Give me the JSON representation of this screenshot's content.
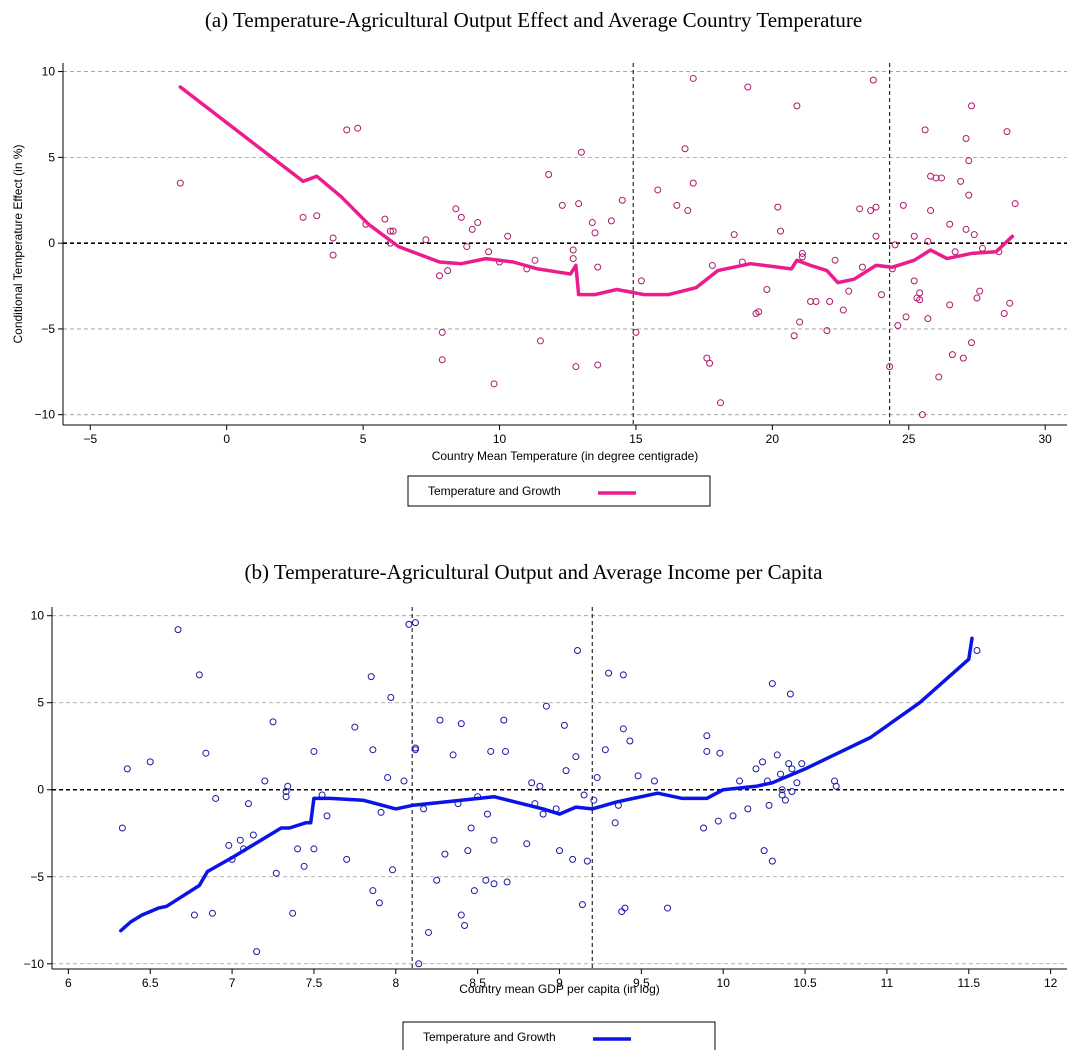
{
  "figure": {
    "panel_a_title": "(a) Temperature-Agricultural Output Effect and Average Country Temperature",
    "panel_b_title": "(b) Temperature-Agricultural Output and Average Income per Capita"
  },
  "chart_data": [
    {
      "type": "scatter",
      "title": "(a) Temperature-Agricultural Output Effect and Average Country Temperature",
      "xlabel": "Country Mean Temperature (in degree centigrade)",
      "ylabel": "Conditional Temperature Effect (in %)",
      "xlim": [
        -6,
        30.8
      ],
      "ylim": [
        -10.6,
        10.5
      ],
      "xticks": [
        -5,
        0,
        5,
        10,
        15,
        20,
        25,
        30
      ],
      "yticks": [
        -10,
        -5,
        0,
        5,
        10
      ],
      "grid": "horizontal dashed",
      "vlines": [
        14.9,
        24.3
      ],
      "hline": 0,
      "marker_color": "#b0196b",
      "line_color": "#ec1c8f",
      "legend": {
        "label": "Temperature and Growth",
        "placement": "bottom-center"
      },
      "fit_line": [
        [
          -1.7,
          9.1
        ],
        [
          2.8,
          3.6
        ],
        [
          3.3,
          3.9
        ],
        [
          4.2,
          2.7
        ],
        [
          5.2,
          1.1
        ],
        [
          6.3,
          -0.2
        ],
        [
          7.8,
          -1.1
        ],
        [
          8.6,
          -1.2
        ],
        [
          9.5,
          -0.9
        ],
        [
          10.5,
          -1.1
        ],
        [
          11.4,
          -1.5
        ],
        [
          12.2,
          -1.7
        ],
        [
          12.6,
          -1.8
        ],
        [
          12.8,
          -1.3
        ],
        [
          12.9,
          -3.0
        ],
        [
          13.5,
          -3.0
        ],
        [
          14.3,
          -2.7
        ],
        [
          15.3,
          -3.0
        ],
        [
          16.2,
          -3.0
        ],
        [
          17.2,
          -2.6
        ],
        [
          18.0,
          -1.6
        ],
        [
          19.2,
          -1.2
        ],
        [
          20.7,
          -1.5
        ],
        [
          20.9,
          -1.0
        ],
        [
          21.4,
          -1.3
        ],
        [
          22.0,
          -1.6
        ],
        [
          22.4,
          -2.3
        ],
        [
          23.0,
          -2.1
        ],
        [
          23.8,
          -1.3
        ],
        [
          24.4,
          -1.4
        ],
        [
          25.2,
          -1.0
        ],
        [
          25.8,
          -0.4
        ],
        [
          26.4,
          -0.9
        ],
        [
          27.3,
          -0.6
        ],
        [
          28.2,
          -0.5
        ],
        [
          28.8,
          0.4
        ]
      ],
      "points": [
        [
          -1.7,
          3.5
        ],
        [
          2.8,
          1.5
        ],
        [
          3.3,
          1.6
        ],
        [
          3.9,
          0.3
        ],
        [
          3.9,
          -0.7
        ],
        [
          4.4,
          6.6
        ],
        [
          4.8,
          6.7
        ],
        [
          5.1,
          1.1
        ],
        [
          5.8,
          1.4
        ],
        [
          6.0,
          0.7
        ],
        [
          6.1,
          0.7
        ],
        [
          6.0,
          0.0
        ],
        [
          7.3,
          0.2
        ],
        [
          7.8,
          -1.9
        ],
        [
          7.9,
          -5.2
        ],
        [
          7.9,
          -6.8
        ],
        [
          8.1,
          -1.6
        ],
        [
          8.4,
          2.0
        ],
        [
          8.6,
          1.5
        ],
        [
          8.8,
          -0.2
        ],
        [
          9.0,
          0.8
        ],
        [
          9.2,
          1.2
        ],
        [
          9.6,
          -0.5
        ],
        [
          9.8,
          -8.2
        ],
        [
          10.0,
          -1.1
        ],
        [
          10.3,
          0.4
        ],
        [
          11.0,
          -1.5
        ],
        [
          11.3,
          -1.0
        ],
        [
          11.5,
          -5.7
        ],
        [
          11.8,
          4.0
        ],
        [
          12.3,
          2.2
        ],
        [
          12.7,
          -0.4
        ],
        [
          12.7,
          -0.9
        ],
        [
          12.8,
          -7.2
        ],
        [
          12.9,
          2.3
        ],
        [
          13.0,
          5.3
        ],
        [
          13.4,
          1.2
        ],
        [
          13.5,
          0.6
        ],
        [
          13.6,
          -1.4
        ],
        [
          13.6,
          -7.1
        ],
        [
          14.1,
          1.3
        ],
        [
          14.5,
          2.5
        ],
        [
          15.0,
          -5.2
        ],
        [
          15.2,
          -2.2
        ],
        [
          15.8,
          3.1
        ],
        [
          16.5,
          2.2
        ],
        [
          16.8,
          5.5
        ],
        [
          16.9,
          1.9
        ],
        [
          17.1,
          9.6
        ],
        [
          17.1,
          3.5
        ],
        [
          17.6,
          -6.7
        ],
        [
          17.7,
          -7.0
        ],
        [
          17.8,
          -1.3
        ],
        [
          18.1,
          -9.3
        ],
        [
          18.6,
          0.5
        ],
        [
          18.9,
          -1.1
        ],
        [
          19.1,
          9.1
        ],
        [
          19.4,
          -4.1
        ],
        [
          19.5,
          -4.0
        ],
        [
          19.8,
          -2.7
        ],
        [
          20.2,
          2.1
        ],
        [
          20.3,
          0.7
        ],
        [
          20.8,
          -5.4
        ],
        [
          20.9,
          8.0
        ],
        [
          21.0,
          -4.6
        ],
        [
          21.1,
          -0.8
        ],
        [
          21.1,
          -0.6
        ],
        [
          21.4,
          -3.4
        ],
        [
          21.6,
          -3.4
        ],
        [
          22.0,
          -5.1
        ],
        [
          22.1,
          -3.4
        ],
        [
          22.3,
          -1.0
        ],
        [
          22.6,
          -3.9
        ],
        [
          22.8,
          -2.8
        ],
        [
          23.2,
          2.0
        ],
        [
          23.3,
          -1.4
        ],
        [
          23.6,
          1.9
        ],
        [
          23.7,
          9.5
        ],
        [
          23.8,
          2.1
        ],
        [
          23.8,
          0.4
        ],
        [
          24.0,
          -3.0
        ],
        [
          24.3,
          -7.2
        ],
        [
          24.4,
          -1.5
        ],
        [
          24.5,
          -0.1
        ],
        [
          24.6,
          -4.8
        ],
        [
          24.8,
          2.2
        ],
        [
          24.9,
          -4.3
        ],
        [
          25.2,
          -2.2
        ],
        [
          25.2,
          0.4
        ],
        [
          25.3,
          -3.2
        ],
        [
          25.4,
          -2.9
        ],
        [
          25.4,
          -3.3
        ],
        [
          25.5,
          -10.0
        ],
        [
          25.6,
          6.6
        ],
        [
          25.7,
          0.1
        ],
        [
          25.7,
          -4.4
        ],
        [
          25.8,
          1.9
        ],
        [
          25.8,
          3.9
        ],
        [
          26.0,
          3.8
        ],
        [
          26.1,
          -7.8
        ],
        [
          26.2,
          3.8
        ],
        [
          26.5,
          -3.6
        ],
        [
          26.5,
          1.1
        ],
        [
          26.6,
          -6.5
        ],
        [
          26.7,
          -0.5
        ],
        [
          26.9,
          3.6
        ],
        [
          27.0,
          -6.7
        ],
        [
          27.1,
          0.8
        ],
        [
          27.1,
          6.1
        ],
        [
          27.2,
          4.8
        ],
        [
          27.2,
          2.8
        ],
        [
          27.3,
          -5.8
        ],
        [
          27.3,
          8.0
        ],
        [
          27.4,
          0.5
        ],
        [
          27.5,
          -3.2
        ],
        [
          27.6,
          -2.8
        ],
        [
          27.7,
          -0.3
        ],
        [
          28.3,
          -0.5
        ],
        [
          28.5,
          -4.1
        ],
        [
          28.6,
          6.5
        ],
        [
          28.7,
          -3.5
        ],
        [
          28.9,
          2.3
        ]
      ]
    },
    {
      "type": "scatter",
      "title": "(b) Temperature-Agricultural Output and Average Income per Capita",
      "xlabel": "Country mean GDP per capita (in log)",
      "ylabel": "",
      "xlim": [
        5.9,
        12.1
      ],
      "ylim": [
        -10.3,
        10.5
      ],
      "xticks": [
        6,
        6.5,
        7,
        7.5,
        8,
        8.5,
        9,
        9.5,
        10,
        10.5,
        11,
        11.5,
        12
      ],
      "yticks": [
        -10,
        -5,
        0,
        5,
        10
      ],
      "grid": "horizontal dashed",
      "vlines": [
        8.1,
        9.2
      ],
      "hline": 0,
      "marker_color": "#1a1aa6",
      "line_color": "#0a14e6",
      "legend": {
        "label": "Temperature and Growth",
        "placement": "bottom-center"
      },
      "fit_line": [
        [
          6.32,
          -8.1
        ],
        [
          6.38,
          -7.6
        ],
        [
          6.45,
          -7.2
        ],
        [
          6.55,
          -6.8
        ],
        [
          6.6,
          -6.7
        ],
        [
          6.8,
          -5.5
        ],
        [
          6.85,
          -4.7
        ],
        [
          7.0,
          -3.9
        ],
        [
          7.3,
          -2.2
        ],
        [
          7.35,
          -2.2
        ],
        [
          7.45,
          -1.9
        ],
        [
          7.48,
          -1.9
        ],
        [
          7.5,
          -0.5
        ],
        [
          7.6,
          -0.5
        ],
        [
          7.8,
          -0.6
        ],
        [
          8.0,
          -1.1
        ],
        [
          8.1,
          -0.9
        ],
        [
          8.4,
          -0.6
        ],
        [
          8.6,
          -0.4
        ],
        [
          8.9,
          -1.1
        ],
        [
          9.0,
          -1.4
        ],
        [
          9.1,
          -1.0
        ],
        [
          9.2,
          -1.1
        ],
        [
          9.35,
          -0.7
        ],
        [
          9.6,
          -0.2
        ],
        [
          9.75,
          -0.5
        ],
        [
          9.9,
          -0.5
        ],
        [
          10.0,
          0.0
        ],
        [
          10.2,
          0.2
        ],
        [
          10.3,
          0.4
        ],
        [
          10.5,
          1.2
        ],
        [
          10.7,
          2.1
        ],
        [
          10.9,
          3.0
        ],
        [
          11.2,
          5.0
        ],
        [
          11.5,
          7.5
        ],
        [
          11.52,
          8.7
        ]
      ],
      "points": [
        [
          6.33,
          -2.2
        ],
        [
          6.36,
          1.2
        ],
        [
          6.5,
          1.6
        ],
        [
          6.67,
          9.2
        ],
        [
          6.77,
          -7.2
        ],
        [
          6.8,
          6.6
        ],
        [
          6.84,
          2.1
        ],
        [
          6.88,
          -7.1
        ],
        [
          6.9,
          -0.5
        ],
        [
          6.98,
          -3.2
        ],
        [
          7.0,
          -4.0
        ],
        [
          7.05,
          -2.9
        ],
        [
          7.07,
          -3.4
        ],
        [
          7.1,
          -0.8
        ],
        [
          7.13,
          -2.6
        ],
        [
          7.15,
          -9.3
        ],
        [
          7.2,
          0.5
        ],
        [
          7.25,
          3.9
        ],
        [
          7.27,
          -4.8
        ],
        [
          7.33,
          -0.4
        ],
        [
          7.33,
          -0.1
        ],
        [
          7.34,
          0.2
        ],
        [
          7.37,
          -7.1
        ],
        [
          7.4,
          -3.4
        ],
        [
          7.44,
          -4.4
        ],
        [
          7.5,
          2.2
        ],
        [
          7.5,
          -3.4
        ],
        [
          7.55,
          -0.3
        ],
        [
          7.58,
          -1.5
        ],
        [
          7.7,
          -4.0
        ],
        [
          7.75,
          3.6
        ],
        [
          7.85,
          6.5
        ],
        [
          7.86,
          2.3
        ],
        [
          7.86,
          -5.8
        ],
        [
          7.9,
          -6.5
        ],
        [
          7.91,
          -1.3
        ],
        [
          7.95,
          0.7
        ],
        [
          7.97,
          5.3
        ],
        [
          7.98,
          -4.6
        ],
        [
          8.05,
          0.5
        ],
        [
          8.08,
          9.5
        ],
        [
          8.12,
          9.6
        ],
        [
          8.12,
          2.4
        ],
        [
          8.12,
          2.3
        ],
        [
          8.14,
          -10.0
        ],
        [
          8.17,
          -1.1
        ],
        [
          8.2,
          -8.2
        ],
        [
          8.25,
          -5.2
        ],
        [
          8.27,
          4.0
        ],
        [
          8.3,
          -3.7
        ],
        [
          8.35,
          2.0
        ],
        [
          8.38,
          -0.8
        ],
        [
          8.4,
          3.8
        ],
        [
          8.4,
          -7.2
        ],
        [
          8.42,
          -7.8
        ],
        [
          8.44,
          -3.5
        ],
        [
          8.46,
          -2.2
        ],
        [
          8.48,
          -5.8
        ],
        [
          8.5,
          -0.4
        ],
        [
          8.55,
          -5.2
        ],
        [
          8.56,
          -1.4
        ],
        [
          8.58,
          2.2
        ],
        [
          8.6,
          -2.9
        ],
        [
          8.6,
          -5.4
        ],
        [
          8.66,
          4.0
        ],
        [
          8.67,
          2.2
        ],
        [
          8.68,
          -5.3
        ],
        [
          8.8,
          -3.1
        ],
        [
          8.83,
          0.4
        ],
        [
          8.85,
          -0.8
        ],
        [
          8.88,
          0.2
        ],
        [
          8.9,
          -1.4
        ],
        [
          8.92,
          4.8
        ],
        [
          8.98,
          -1.1
        ],
        [
          9.0,
          -3.5
        ],
        [
          9.03,
          3.7
        ],
        [
          9.04,
          1.1
        ],
        [
          9.08,
          -4.0
        ],
        [
          9.1,
          1.9
        ],
        [
          9.11,
          8.0
        ],
        [
          9.14,
          -6.6
        ],
        [
          9.15,
          -0.3
        ],
        [
          9.17,
          -4.1
        ],
        [
          9.21,
          -0.6
        ],
        [
          9.23,
          0.7
        ],
        [
          9.28,
          2.3
        ],
        [
          9.3,
          6.7
        ],
        [
          9.34,
          -1.9
        ],
        [
          9.36,
          -0.9
        ],
        [
          9.38,
          -7.0
        ],
        [
          9.39,
          6.6
        ],
        [
          9.39,
          3.5
        ],
        [
          9.4,
          -6.8
        ],
        [
          9.43,
          2.8
        ],
        [
          9.48,
          0.8
        ],
        [
          9.58,
          0.5
        ],
        [
          9.66,
          -6.8
        ],
        [
          9.88,
          -2.2
        ],
        [
          9.9,
          3.1
        ],
        [
          9.9,
          2.2
        ],
        [
          9.97,
          -1.8
        ],
        [
          9.98,
          2.1
        ],
        [
          10.06,
          -1.5
        ],
        [
          10.1,
          0.5
        ],
        [
          10.15,
          -1.1
        ],
        [
          10.2,
          1.2
        ],
        [
          10.24,
          1.6
        ],
        [
          10.25,
          -3.5
        ],
        [
          10.27,
          0.5
        ],
        [
          10.28,
          -0.9
        ],
        [
          10.3,
          6.1
        ],
        [
          10.3,
          -4.1
        ],
        [
          10.33,
          2.0
        ],
        [
          10.35,
          0.9
        ],
        [
          10.36,
          0.0
        ],
        [
          10.36,
          -0.3
        ],
        [
          10.38,
          -0.6
        ],
        [
          10.4,
          1.5
        ],
        [
          10.41,
          5.5
        ],
        [
          10.42,
          -0.1
        ],
        [
          10.42,
          1.2
        ],
        [
          10.45,
          0.4
        ],
        [
          10.48,
          1.5
        ],
        [
          10.68,
          0.5
        ],
        [
          10.69,
          0.2
        ],
        [
          11.55,
          8.0
        ]
      ]
    }
  ]
}
